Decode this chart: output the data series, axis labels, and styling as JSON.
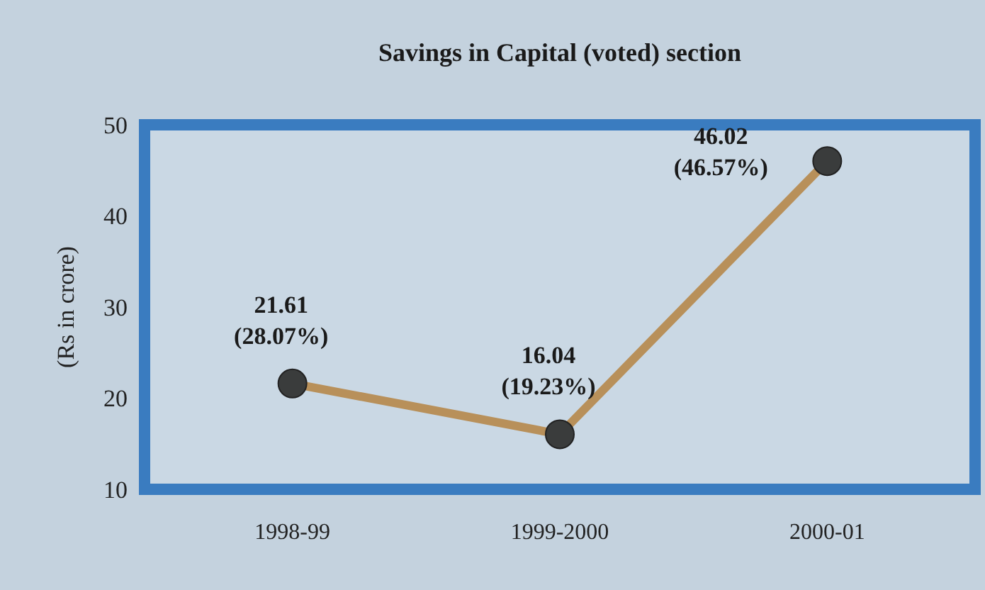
{
  "chart_data": {
    "type": "line",
    "title": "Savings  in Capital (voted) section",
    "ylabel": "(Rs in crore)",
    "categories": [
      "1998-99",
      "1999-2000",
      "2000-01"
    ],
    "series": [
      {
        "color": "#b8905a",
        "values": [
          21.61,
          16.04,
          46.02
        ],
        "value_labels": [
          "21.61 (28.07%)",
          "16.04 (19.23%)",
          "46.02 (46.57%)"
        ]
      }
    ],
    "ylim": [
      10,
      50
    ],
    "yticks": [
      10,
      20,
      30,
      40,
      50
    ],
    "grid": false,
    "marker": "circle",
    "line_style": "solid"
  }
}
